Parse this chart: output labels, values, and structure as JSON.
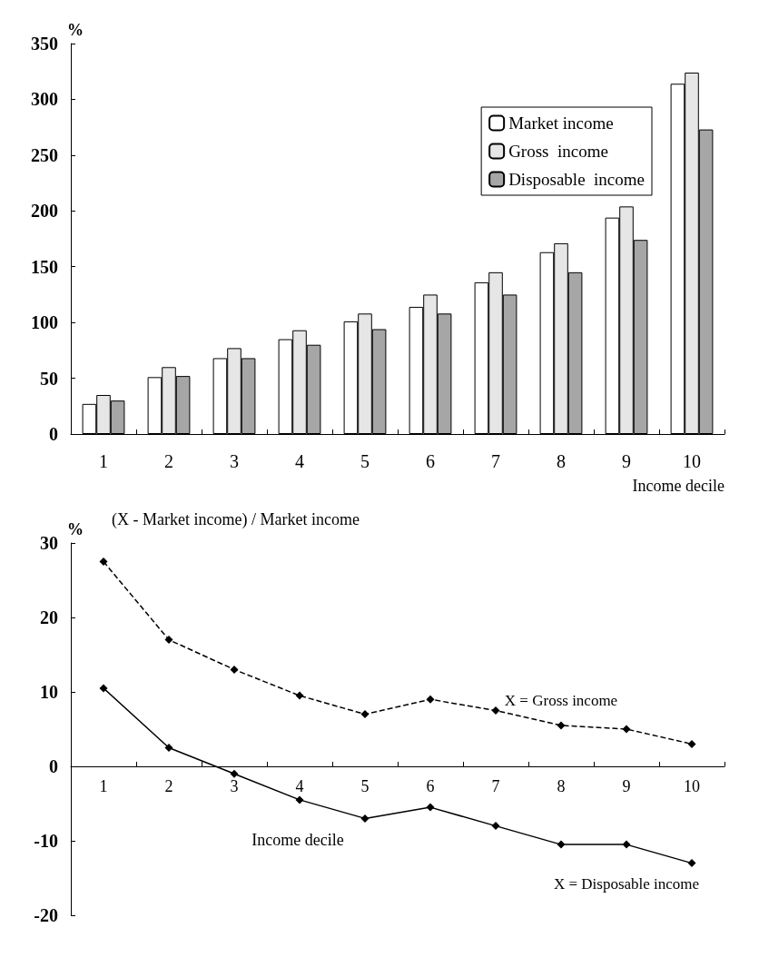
{
  "chart_data": [
    {
      "type": "bar",
      "ylabel": "%",
      "xlabel": "Income decile",
      "categories": [
        "1",
        "2",
        "3",
        "4",
        "5",
        "6",
        "7",
        "8",
        "9",
        "10"
      ],
      "series": [
        {
          "name": "Market income",
          "color": "#ffffff",
          "values": [
            27,
            51,
            68,
            85,
            101,
            114,
            136,
            163,
            194,
            314
          ]
        },
        {
          "name": "Gross  income",
          "color": "#e6e6e6",
          "values": [
            35,
            60,
            77,
            93,
            108,
            125,
            145,
            171,
            204,
            324
          ]
        },
        {
          "name": "Disposable  income",
          "color": "#a6a6a6",
          "values": [
            30,
            52,
            68,
            80,
            94,
            108,
            125,
            145,
            174,
            273
          ]
        }
      ],
      "ylim": [
        0,
        350
      ],
      "yticks": [
        0,
        50,
        100,
        150,
        200,
        250,
        300,
        350
      ],
      "grid": false,
      "legend": "top right"
    },
    {
      "type": "line",
      "title": "(X - Market income) / Market income",
      "ylabel": "%",
      "xlabel": "Income decile",
      "categories": [
        "1",
        "2",
        "3",
        "4",
        "5",
        "6",
        "7",
        "8",
        "9",
        "10"
      ],
      "series": [
        {
          "name": "X = Gross income",
          "color": "#000000",
          "line_style": "dashed",
          "values": [
            27.5,
            17,
            13,
            9.5,
            7,
            9,
            7.5,
            5.5,
            5,
            3
          ]
        },
        {
          "name": "X = Disposable income",
          "color": "#000000",
          "line_style": "solid",
          "values": [
            10.5,
            2.5,
            -1,
            -4.5,
            -7,
            -5.5,
            -8,
            -10.5,
            -10.5,
            -13
          ]
        }
      ],
      "ylim": [
        -20,
        30
      ],
      "yticks": [
        -20,
        -10,
        0,
        10,
        20,
        30
      ],
      "grid": false,
      "legend": false,
      "marker": "diamond"
    }
  ]
}
